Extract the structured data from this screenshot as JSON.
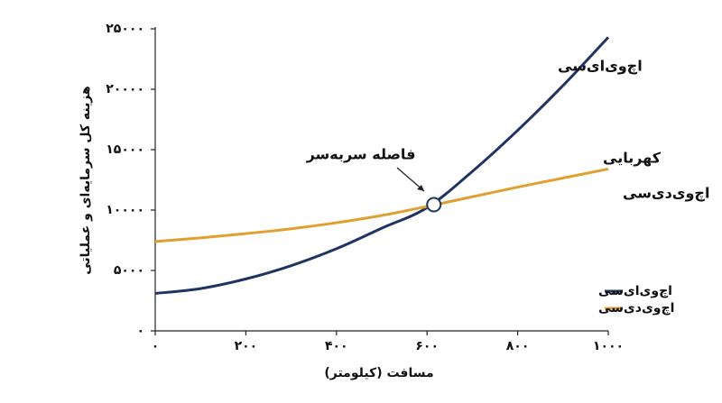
{
  "chart_data": {
    "type": "line",
    "x_label": "مسافت (کیلومتر)",
    "y_label": "هزینه کل سرمایه‌ای و عملیاتی",
    "x": [
      0,
      100,
      200,
      300,
      400,
      500,
      600,
      700,
      800,
      900,
      1000
    ],
    "series": [
      {
        "name": "اچ‌وی‌ای‌سی",
        "color": "#1f3462",
        "values": [
          3100,
          3500,
          4300,
          5400,
          6800,
          8500,
          10200,
          13200,
          16600,
          20300,
          24300
        ]
      },
      {
        "name": "اچ‌وی‌دی‌سی",
        "color": "#e0a030",
        "values": [
          7400,
          7700,
          8050,
          8450,
          8950,
          9550,
          10300,
          11100,
          11900,
          12650,
          13400
        ]
      }
    ],
    "annotations": [
      "کهربایی"
    ],
    "breakeven": {
      "label": "فاصله سربه‌سر",
      "x": 615,
      "y": 10450
    },
    "xlim": [
      0,
      1000
    ],
    "xticks": [
      {
        "value": 0,
        "label": "۰"
      },
      {
        "value": 200,
        "label": "۲۰۰"
      },
      {
        "value": 400,
        "label": "۴۰۰"
      },
      {
        "value": 600,
        "label": "۶۰۰"
      },
      {
        "value": 800,
        "label": "۸۰۰"
      },
      {
        "value": 1000,
        "label": "۱۰۰۰"
      }
    ],
    "ylim": [
      0,
      25000
    ],
    "yticks": [
      {
        "value": 0,
        "label": "۰"
      },
      {
        "value": 5000,
        "label": "۵۰۰۰"
      },
      {
        "value": 10000,
        "label": "۱۰۰۰۰"
      },
      {
        "value": 15000,
        "label": "۱۵۰۰۰"
      },
      {
        "value": 20000,
        "label": "۲۰۰۰۰"
      },
      {
        "value": 25000,
        "label": "۲۵۰۰۰"
      }
    ],
    "grid": false
  }
}
